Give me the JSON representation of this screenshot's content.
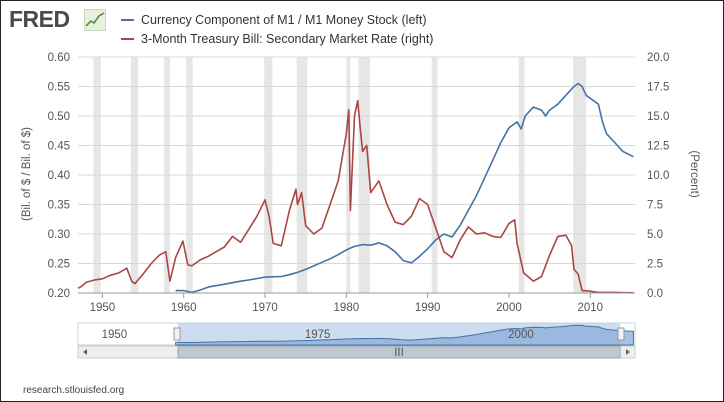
{
  "brand": {
    "logo_text": "FRED"
  },
  "source_text": "research.stlouisfed.org",
  "colors": {
    "series_left": "#4572a7",
    "series_right": "#aa4643",
    "recession": "#e6e6e6"
  },
  "navigator": {
    "labels": [
      "1950",
      "1975",
      "2000"
    ],
    "scroll_label": "III"
  },
  "chart_data": {
    "type": "line",
    "x_range": [
      1947,
      2015.5
    ],
    "x_ticks": [
      1950,
      1960,
      1970,
      1980,
      1990,
      2000,
      2010
    ],
    "left_axis": {
      "label": "(Bil. of $ / Bil. of $)",
      "range": [
        0.2,
        0.6
      ],
      "ticks": [
        "0.20",
        "0.25",
        "0.30",
        "0.35",
        "0.40",
        "0.45",
        "0.50",
        "0.55",
        "0.60"
      ]
    },
    "right_axis": {
      "label": "(Percent)",
      "range": [
        0,
        20
      ],
      "ticks": [
        "0.0",
        "2.5",
        "5.0",
        "7.5",
        "10.0",
        "12.5",
        "15.0",
        "17.5",
        "20.0"
      ]
    },
    "grid": true,
    "legend_position": "top",
    "recessions": [
      [
        1948.9,
        1949.8
      ],
      [
        1953.5,
        1954.4
      ],
      [
        1957.6,
        1958.3
      ],
      [
        1960.3,
        1961.1
      ],
      [
        1969.9,
        1970.9
      ],
      [
        1973.9,
        1975.2
      ],
      [
        1980.0,
        1980.5
      ],
      [
        1981.5,
        1982.9
      ],
      [
        1990.5,
        1991.2
      ],
      [
        2001.2,
        2001.9
      ],
      [
        2007.9,
        2009.5
      ]
    ],
    "series": [
      {
        "name": "Currency Component of M1 / M1 Money Stock (left)",
        "axis": "left",
        "color": "#4572a7",
        "points": [
          [
            1959,
            0.204
          ],
          [
            1960,
            0.204
          ],
          [
            1961,
            0.201
          ],
          [
            1962,
            0.205
          ],
          [
            1963,
            0.21
          ],
          [
            1965,
            0.215
          ],
          [
            1967,
            0.22
          ],
          [
            1968,
            0.222
          ],
          [
            1970,
            0.227
          ],
          [
            1972,
            0.228
          ],
          [
            1973,
            0.231
          ],
          [
            1974,
            0.235
          ],
          [
            1975,
            0.24
          ],
          [
            1976,
            0.246
          ],
          [
            1977,
            0.252
          ],
          [
            1978,
            0.258
          ],
          [
            1979,
            0.265
          ],
          [
            1980,
            0.273
          ],
          [
            1981,
            0.279
          ],
          [
            1982,
            0.282
          ],
          [
            1983,
            0.281
          ],
          [
            1984,
            0.285
          ],
          [
            1985,
            0.28
          ],
          [
            1986,
            0.27
          ],
          [
            1987,
            0.255
          ],
          [
            1988,
            0.251
          ],
          [
            1989,
            0.262
          ],
          [
            1990,
            0.275
          ],
          [
            1991,
            0.29
          ],
          [
            1992,
            0.3
          ],
          [
            1993,
            0.295
          ],
          [
            1994,
            0.315
          ],
          [
            1995,
            0.34
          ],
          [
            1996,
            0.365
          ],
          [
            1997,
            0.395
          ],
          [
            1998,
            0.425
          ],
          [
            1999,
            0.455
          ],
          [
            2000,
            0.48
          ],
          [
            2001,
            0.49
          ],
          [
            2001.5,
            0.478
          ],
          [
            2002,
            0.5
          ],
          [
            2003,
            0.515
          ],
          [
            2004,
            0.51
          ],
          [
            2004.5,
            0.5
          ],
          [
            2005,
            0.51
          ],
          [
            2006,
            0.52
          ],
          [
            2007,
            0.535
          ],
          [
            2008,
            0.55
          ],
          [
            2008.5,
            0.555
          ],
          [
            2009,
            0.55
          ],
          [
            2009.5,
            0.535
          ],
          [
            2010,
            0.53
          ],
          [
            2011,
            0.52
          ],
          [
            2011.5,
            0.49
          ],
          [
            2012,
            0.47
          ],
          [
            2013,
            0.455
          ],
          [
            2014,
            0.44
          ],
          [
            2015.3,
            0.431
          ]
        ]
      },
      {
        "name": "3-Month Treasury Bill: Secondary Market Rate (right)",
        "axis": "right",
        "color": "#aa4643",
        "points": [
          [
            1947,
            0.4
          ],
          [
            1947.5,
            0.6
          ],
          [
            1948,
            0.9
          ],
          [
            1949,
            1.1
          ],
          [
            1950,
            1.2
          ],
          [
            1951,
            1.5
          ],
          [
            1952,
            1.7
          ],
          [
            1953,
            2.1
          ],
          [
            1953.6,
            1.0
          ],
          [
            1954,
            0.8
          ],
          [
            1955,
            1.6
          ],
          [
            1956,
            2.5
          ],
          [
            1957,
            3.2
          ],
          [
            1957.8,
            3.5
          ],
          [
            1958.3,
            1.0
          ],
          [
            1959,
            3.0
          ],
          [
            1959.9,
            4.4
          ],
          [
            1960.5,
            2.4
          ],
          [
            1961,
            2.3
          ],
          [
            1962,
            2.8
          ],
          [
            1963,
            3.1
          ],
          [
            1964,
            3.5
          ],
          [
            1965,
            3.9
          ],
          [
            1966,
            4.8
          ],
          [
            1967,
            4.3
          ],
          [
            1968,
            5.4
          ],
          [
            1969,
            6.5
          ],
          [
            1970,
            7.9
          ],
          [
            1970.5,
            6.5
          ],
          [
            1971,
            4.2
          ],
          [
            1972,
            4.0
          ],
          [
            1973,
            7.0
          ],
          [
            1973.8,
            8.8
          ],
          [
            1974,
            7.5
          ],
          [
            1974.5,
            8.5
          ],
          [
            1975,
            5.7
          ],
          [
            1976,
            5.0
          ],
          [
            1977,
            5.5
          ],
          [
            1978,
            7.5
          ],
          [
            1979,
            9.5
          ],
          [
            1980,
            13.5
          ],
          [
            1980.3,
            15.5
          ],
          [
            1980.5,
            7.0
          ],
          [
            1981,
            15.0
          ],
          [
            1981.4,
            16.3
          ],
          [
            1981.7,
            14.0
          ],
          [
            1982,
            12.0
          ],
          [
            1982.5,
            12.5
          ],
          [
            1983,
            8.5
          ],
          [
            1984,
            9.5
          ],
          [
            1985,
            7.5
          ],
          [
            1986,
            6.0
          ],
          [
            1987,
            5.8
          ],
          [
            1988,
            6.5
          ],
          [
            1989,
            8.0
          ],
          [
            1990,
            7.5
          ],
          [
            1991,
            5.5
          ],
          [
            1992,
            3.5
          ],
          [
            1993,
            3.0
          ],
          [
            1994,
            4.5
          ],
          [
            1995,
            5.6
          ],
          [
            1996,
            5.0
          ],
          [
            1997,
            5.1
          ],
          [
            1998,
            4.8
          ],
          [
            1999,
            4.7
          ],
          [
            2000,
            5.9
          ],
          [
            2000.7,
            6.2
          ],
          [
            2001,
            4.2
          ],
          [
            2001.8,
            1.7
          ],
          [
            2002,
            1.6
          ],
          [
            2003,
            1.0
          ],
          [
            2004,
            1.4
          ],
          [
            2005,
            3.2
          ],
          [
            2006,
            4.8
          ],
          [
            2007,
            4.9
          ],
          [
            2007.7,
            4.0
          ],
          [
            2008,
            2.0
          ],
          [
            2008.5,
            1.6
          ],
          [
            2009,
            0.2
          ],
          [
            2010,
            0.15
          ],
          [
            2011,
            0.05
          ],
          [
            2013,
            0.05
          ],
          [
            2015.3,
            0.02
          ]
        ]
      }
    ]
  }
}
